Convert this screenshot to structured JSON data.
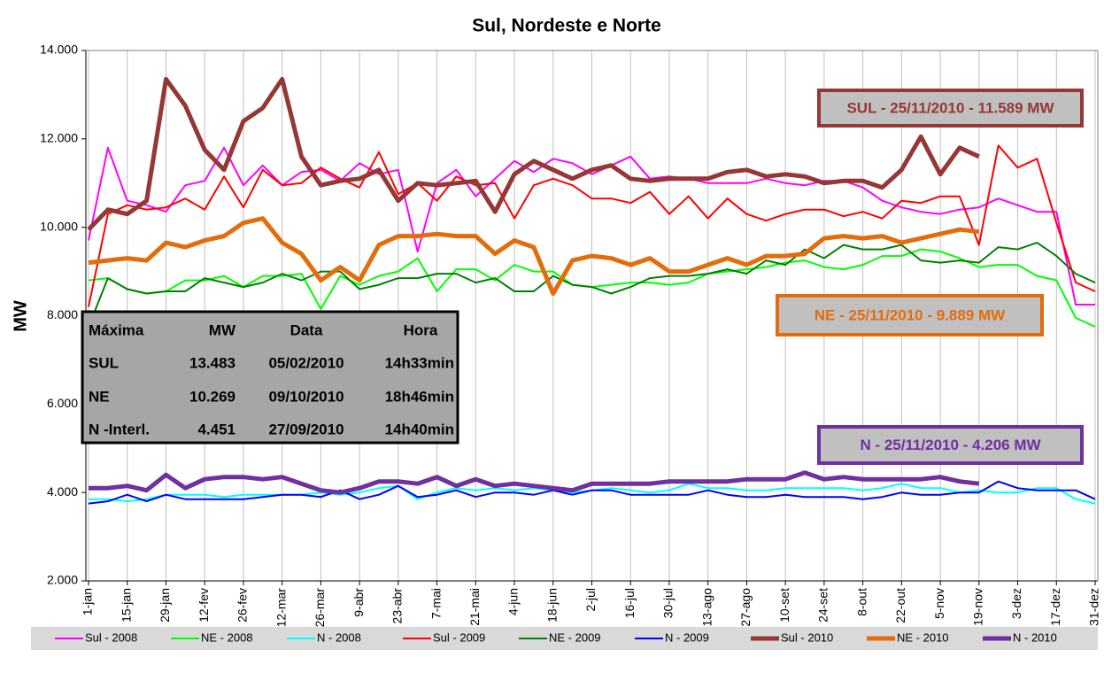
{
  "chart_data": {
    "type": "line",
    "title": "Sul, Nordeste e Norte",
    "y_label": "MW",
    "categories": [
      "1-jan",
      null,
      "15-jan",
      null,
      "29-jan",
      null,
      "12-fev",
      null,
      "26-fev",
      null,
      "12-mar",
      null,
      "26-mar",
      null,
      "9-abr",
      null,
      "23-abr",
      null,
      "7-mai",
      null,
      "21-mai",
      null,
      "4-jun",
      null,
      "18-jun",
      null,
      "2-jul",
      null,
      "16-jul",
      null,
      "30-jul",
      null,
      "13-ago",
      null,
      "27-ago",
      null,
      "10-set",
      null,
      "24-set",
      null,
      "8-out",
      null,
      "22-out",
      null,
      "5-nov",
      null,
      "19-nov",
      null,
      "3-dez",
      null,
      "17-dez",
      null,
      "31-dez"
    ],
    "ylim": [
      2000,
      14000
    ],
    "yticks": [
      {
        "value": 2000,
        "label": "2.000"
      },
      {
        "value": 4000,
        "label": "4.000"
      },
      {
        "value": 6000,
        "label": "6.000"
      },
      {
        "value": 8000,
        "label": "8.000"
      },
      {
        "value": 10000,
        "label": "10.000"
      },
      {
        "value": 12000,
        "label": "12.000"
      },
      {
        "value": 14000,
        "label": "14.000"
      }
    ],
    "grid": "x",
    "series": [
      {
        "name": "Sul - 2008",
        "color": "#ff00ff",
        "line_width": 2,
        "values": [
          9700,
          11800,
          10600,
          10500,
          10350,
          10950,
          11050,
          11800,
          10950,
          11400,
          10950,
          11250,
          11300,
          11050,
          11450,
          11200,
          11300,
          9450,
          11000,
          11300,
          10700,
          11100,
          11500,
          11250,
          11550,
          11450,
          11200,
          11400,
          11600,
          11100,
          11150,
          11100,
          11000,
          11000,
          11000,
          11100,
          11000,
          10950,
          11050,
          11050,
          10900,
          10600,
          10450,
          10350,
          10300,
          10400,
          10450,
          10650,
          10500,
          10350,
          10350,
          8250,
          8250
        ]
      },
      {
        "name": "NE - 2008",
        "color": "#00ff00",
        "line_width": 2,
        "values": [
          8800,
          8850,
          8600,
          8500,
          8550,
          8800,
          8800,
          8900,
          8650,
          8900,
          8900,
          8950,
          8150,
          8900,
          8700,
          8900,
          9000,
          9300,
          8550,
          9050,
          9050,
          8800,
          9150,
          9000,
          9000,
          8700,
          8650,
          8700,
          8750,
          8750,
          8700,
          8750,
          8950,
          9000,
          9050,
          9100,
          9200,
          9250,
          9100,
          9050,
          9150,
          9350,
          9350,
          9500,
          9450,
          9300,
          9100,
          9150,
          9150,
          8900,
          8800,
          7950,
          7750
        ]
      },
      {
        "name": "N - 2008",
        "color": "#00ffff",
        "line_width": 2,
        "values": [
          3850,
          3850,
          3800,
          3850,
          3950,
          3950,
          3950,
          3900,
          3950,
          3950,
          3950,
          3950,
          4000,
          3950,
          4000,
          4100,
          4150,
          3850,
          4000,
          4100,
          4050,
          4100,
          4050,
          4100,
          4050,
          4000,
          4050,
          4100,
          4050,
          4000,
          4050,
          4200,
          4100,
          4100,
          4050,
          4050,
          4100,
          4100,
          4100,
          4100,
          4050,
          4100,
          4200,
          4100,
          4100,
          4000,
          4050,
          4000,
          4000,
          4100,
          4100,
          3850,
          3750
        ]
      },
      {
        "name": "Sul - 2009",
        "color": "#ff0000",
        "line_width": 2,
        "values": [
          8200,
          10300,
          10500,
          10400,
          10450,
          10650,
          10400,
          11150,
          10450,
          11300,
          10950,
          11000,
          11350,
          11100,
          10900,
          11700,
          10750,
          11000,
          10600,
          11150,
          10950,
          11000,
          10200,
          10950,
          11100,
          10950,
          10650,
          10650,
          10550,
          10800,
          10300,
          10700,
          10200,
          10650,
          10300,
          10150,
          10300,
          10400,
          10400,
          10250,
          10350,
          10200,
          10600,
          10550,
          10700,
          10700,
          9600,
          11850,
          11350,
          11550,
          10100,
          8750,
          8550
        ]
      },
      {
        "name": "NE - 2009",
        "color": "#008000",
        "line_width": 2,
        "values": [
          7750,
          8850,
          8600,
          8500,
          8550,
          8550,
          8850,
          8750,
          8650,
          8750,
          8950,
          8800,
          9000,
          9000,
          8600,
          8700,
          8850,
          8850,
          8950,
          8950,
          8750,
          8850,
          8550,
          8550,
          8900,
          8700,
          8650,
          8500,
          8650,
          8850,
          8900,
          8900,
          8950,
          9050,
          8950,
          9250,
          9150,
          9500,
          9300,
          9600,
          9500,
          9500,
          9600,
          9250,
          9200,
          9250,
          9200,
          9550,
          9500,
          9650,
          9350,
          8950,
          8750
        ]
      },
      {
        "name": "N - 2009",
        "color": "#0000ff",
        "line_width": 2,
        "values": [
          3750,
          3800,
          3950,
          3800,
          3950,
          3850,
          3850,
          3850,
          3850,
          3900,
          3950,
          3950,
          3900,
          4050,
          3850,
          3950,
          4150,
          3900,
          3950,
          4050,
          3900,
          4000,
          4000,
          3950,
          4050,
          3950,
          4050,
          4050,
          3950,
          3950,
          3950,
          3950,
          4050,
          3950,
          3900,
          3900,
          3950,
          3900,
          3900,
          3900,
          3850,
          3900,
          4000,
          3950,
          3950,
          4000,
          4000,
          4250,
          4100,
          4050,
          4050,
          4050,
          3850
        ]
      },
      {
        "name": "Sul - 2010",
        "color": "#953735",
        "line_width": 5,
        "values": [
          9950,
          10400,
          10300,
          10600,
          13350,
          12750,
          11750,
          11300,
          12400,
          12700,
          13350,
          11600,
          10950,
          11050,
          11100,
          11300,
          10600,
          11000,
          10950,
          11000,
          11050,
          10350,
          11200,
          11500,
          11300,
          11100,
          11300,
          11400,
          11100,
          11050,
          11100,
          11100,
          11100,
          11250,
          11300,
          11150,
          11200,
          11150,
          11000,
          11050,
          11050,
          10900,
          11300,
          12050,
          11200,
          11800,
          11600,
          null,
          null,
          null,
          null,
          null,
          null
        ]
      },
      {
        "name": "NE - 2010",
        "color": "#e46c0a",
        "line_width": 5,
        "values": [
          9200,
          9250,
          9300,
          9250,
          9650,
          9550,
          9700,
          9800,
          10100,
          10200,
          9650,
          9400,
          8800,
          9100,
          8800,
          9600,
          9800,
          9800,
          9850,
          9800,
          9800,
          9400,
          9700,
          9550,
          8500,
          9250,
          9350,
          9300,
          9150,
          9300,
          9000,
          9000,
          9150,
          9300,
          9150,
          9350,
          9350,
          9400,
          9750,
          9800,
          9750,
          9800,
          9650,
          9750,
          9850,
          9950,
          9900,
          null,
          null,
          null,
          null,
          null,
          null
        ]
      },
      {
        "name": "N - 2010",
        "color": "#7030a0",
        "line_width": 5,
        "values": [
          4100,
          4100,
          4150,
          4050,
          4400,
          4100,
          4300,
          4350,
          4350,
          4300,
          4350,
          4200,
          4050,
          4000,
          4100,
          4250,
          4250,
          4200,
          4350,
          4150,
          4300,
          4150,
          4200,
          4150,
          4100,
          4050,
          4200,
          4200,
          4200,
          4200,
          4250,
          4250,
          4250,
          4250,
          4300,
          4300,
          4300,
          4450,
          4300,
          4350,
          4300,
          4300,
          4300,
          4300,
          4350,
          4250,
          4200,
          null,
          null,
          null,
          null,
          null,
          null
        ]
      }
    ],
    "annotations": [
      {
        "text": "SUL - 25/11/2010 - 11.589 MW",
        "color": "#953735"
      },
      {
        "text": "NE - 25/11/2010 - 9.889 MW",
        "color": "#e46c0a"
      },
      {
        "text": "N - 25/11/2010 - 4.206 MW",
        "color": "#7030a0"
      }
    ],
    "table": {
      "header": [
        "Máxima",
        "MW",
        "Data",
        "Hora"
      ],
      "rows": [
        [
          "SUL",
          "13.483",
          "05/02/2010",
          "14h33min"
        ],
        [
          "NE",
          "10.269",
          "09/10/2010",
          "18h46min"
        ],
        [
          "N -Interl.",
          "4.451",
          "27/09/2010",
          "14h40min"
        ]
      ]
    }
  }
}
